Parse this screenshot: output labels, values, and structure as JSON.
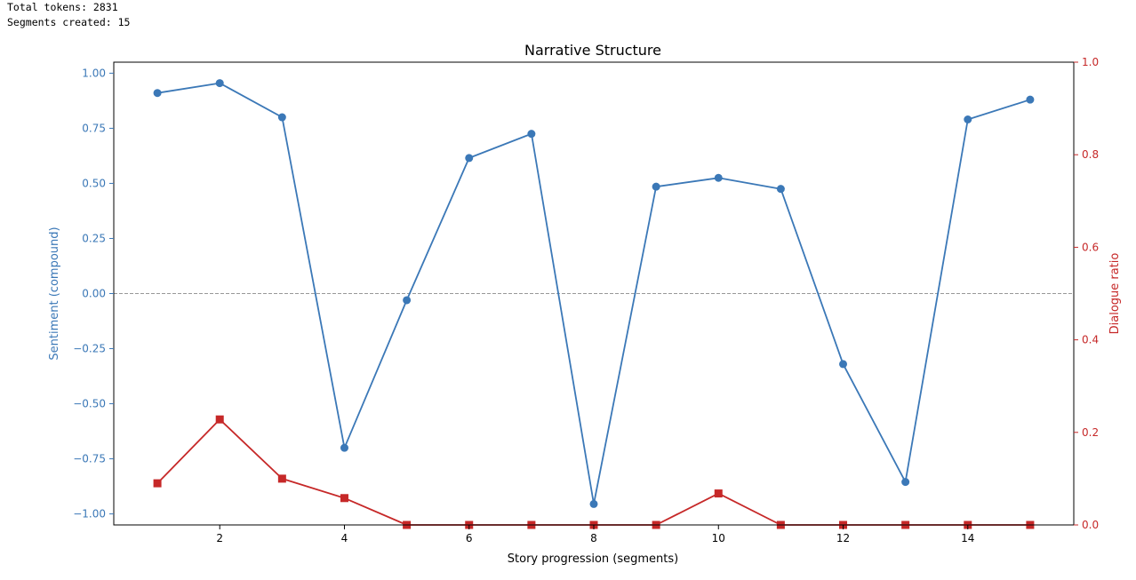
{
  "output": {
    "lines": [
      "Total tokens: 2831",
      "Segments created: 15"
    ]
  },
  "colors": {
    "sentiment": "#3b78b7",
    "dialogue": "#c62828",
    "zero_line": "#999999",
    "axis": "#000000"
  },
  "chart_data": {
    "type": "line",
    "title": "Narrative Structure",
    "xlabel": "Story progression (segments)",
    "ylabel_left": "Sentiment (compound)",
    "ylabel_right": "Dialogue ratio",
    "x": [
      1,
      2,
      3,
      4,
      5,
      6,
      7,
      8,
      9,
      10,
      11,
      12,
      13,
      14,
      15
    ],
    "xlim": [
      0.3,
      15.7
    ],
    "xticks": [
      2,
      4,
      6,
      8,
      10,
      12,
      14
    ],
    "ylim_left": [
      -1.05,
      1.05
    ],
    "yticks_left": [
      "1.00",
      "0.75",
      "0.50",
      "0.25",
      "0.00",
      "−0.25",
      "−0.50",
      "−0.75",
      "−1.00"
    ],
    "ylim_right": [
      0.0,
      1.0
    ],
    "yticks_right": [
      "1.0",
      "0.8",
      "0.6",
      "0.4",
      "0.2",
      "0.0"
    ],
    "zero_line": 0,
    "grid": false,
    "series": [
      {
        "axis": "left",
        "marker": "circle",
        "values": [
          0.91,
          0.955,
          0.8,
          -0.7,
          -0.03,
          0.615,
          0.725,
          -0.955,
          0.485,
          0.525,
          0.475,
          -0.32,
          -0.855,
          0.79,
          0.88
        ]
      },
      {
        "axis": "right",
        "marker": "square",
        "values": [
          0.09,
          0.228,
          0.1,
          0.058,
          0.0,
          0.0,
          0.0,
          0.0,
          0.0,
          0.068,
          0.0,
          0.0,
          0.0,
          0.0,
          0.0
        ]
      }
    ]
  }
}
